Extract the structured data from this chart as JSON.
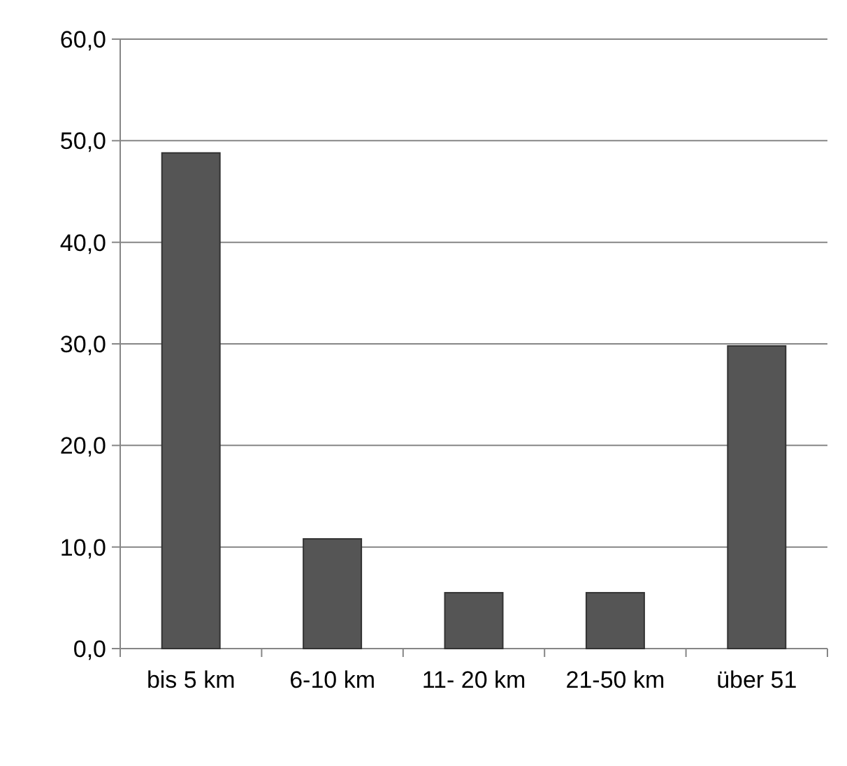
{
  "chart_data": {
    "type": "bar",
    "categories": [
      "bis 5 km",
      "6-10 km",
      "11- 20 km",
      "21-50 km",
      "über 51"
    ],
    "values": [
      48.8,
      10.8,
      5.5,
      5.5,
      29.8
    ],
    "color": "#555555",
    "ylim": [
      0,
      60
    ],
    "yticks": [
      {
        "value": 0,
        "label": "0,0"
      },
      {
        "value": 10,
        "label": "10,0"
      },
      {
        "value": 20,
        "label": "20,0"
      },
      {
        "value": 30,
        "label": "30,0"
      },
      {
        "value": 40,
        "label": "40,0"
      },
      {
        "value": 50,
        "label": "50,0"
      },
      {
        "value": 60,
        "label": "60,0"
      }
    ],
    "grid": "y"
  }
}
